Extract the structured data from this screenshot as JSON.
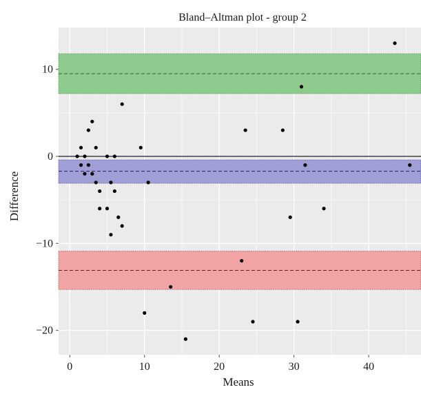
{
  "chart_data": {
    "type": "scatter",
    "title": "Bland–Altman plot - group 2",
    "xlabel": "Means",
    "ylabel": "Difference",
    "xlim": [
      -1.5,
      47
    ],
    "ylim": [
      -22.8,
      14.8
    ],
    "xticks": [
      0,
      10,
      20,
      30,
      40
    ],
    "yticks": [
      -20,
      -10,
      0,
      10
    ],
    "grid": true,
    "background": "#ebebeb",
    "zero_line": 0,
    "bands": [
      {
        "name": "upper limit of agreement",
        "center": 9.5,
        "range": [
          7.2,
          11.8
        ],
        "color": "#8ec98e",
        "line_color": "#2f6b2f"
      },
      {
        "name": "mean difference",
        "center": -1.7,
        "range": [
          -3.1,
          -0.4
        ],
        "color": "#9f9fd6",
        "line_color": "#23236b"
      },
      {
        "name": "lower limit of agreement",
        "center": -13.1,
        "range": [
          -15.3,
          -10.9
        ],
        "color": "#f2a4a4",
        "line_color": "#6b2323"
      }
    ],
    "points": [
      {
        "x": 1.0,
        "y": 0
      },
      {
        "x": 1.5,
        "y": 1
      },
      {
        "x": 1.5,
        "y": -1
      },
      {
        "x": 2.0,
        "y": 0
      },
      {
        "x": 2.0,
        "y": -2
      },
      {
        "x": 2.5,
        "y": 3
      },
      {
        "x": 2.5,
        "y": -1
      },
      {
        "x": 3.0,
        "y": 4
      },
      {
        "x": 3.0,
        "y": -2
      },
      {
        "x": 3.5,
        "y": 1
      },
      {
        "x": 3.5,
        "y": -3
      },
      {
        "x": 4.0,
        "y": -4
      },
      {
        "x": 4.0,
        "y": -6
      },
      {
        "x": 5.0,
        "y": 0
      },
      {
        "x": 5.0,
        "y": -6
      },
      {
        "x": 5.5,
        "y": -3
      },
      {
        "x": 5.5,
        "y": -9
      },
      {
        "x": 6.0,
        "y": 0
      },
      {
        "x": 6.0,
        "y": -4
      },
      {
        "x": 6.5,
        "y": -7
      },
      {
        "x": 7.0,
        "y": 6
      },
      {
        "x": 7.0,
        "y": -8
      },
      {
        "x": 9.5,
        "y": 1
      },
      {
        "x": 10.0,
        "y": -18
      },
      {
        "x": 10.5,
        "y": -3
      },
      {
        "x": 13.5,
        "y": -15
      },
      {
        "x": 15.5,
        "y": -21
      },
      {
        "x": 23.0,
        "y": -12
      },
      {
        "x": 23.5,
        "y": 3
      },
      {
        "x": 24.5,
        "y": -19
      },
      {
        "x": 28.5,
        "y": 3
      },
      {
        "x": 29.5,
        "y": -7
      },
      {
        "x": 30.5,
        "y": -19
      },
      {
        "x": 31.0,
        "y": 8
      },
      {
        "x": 31.5,
        "y": -1
      },
      {
        "x": 34.0,
        "y": -6
      },
      {
        "x": 43.5,
        "y": 13
      },
      {
        "x": 45.5,
        "y": -1
      }
    ]
  }
}
